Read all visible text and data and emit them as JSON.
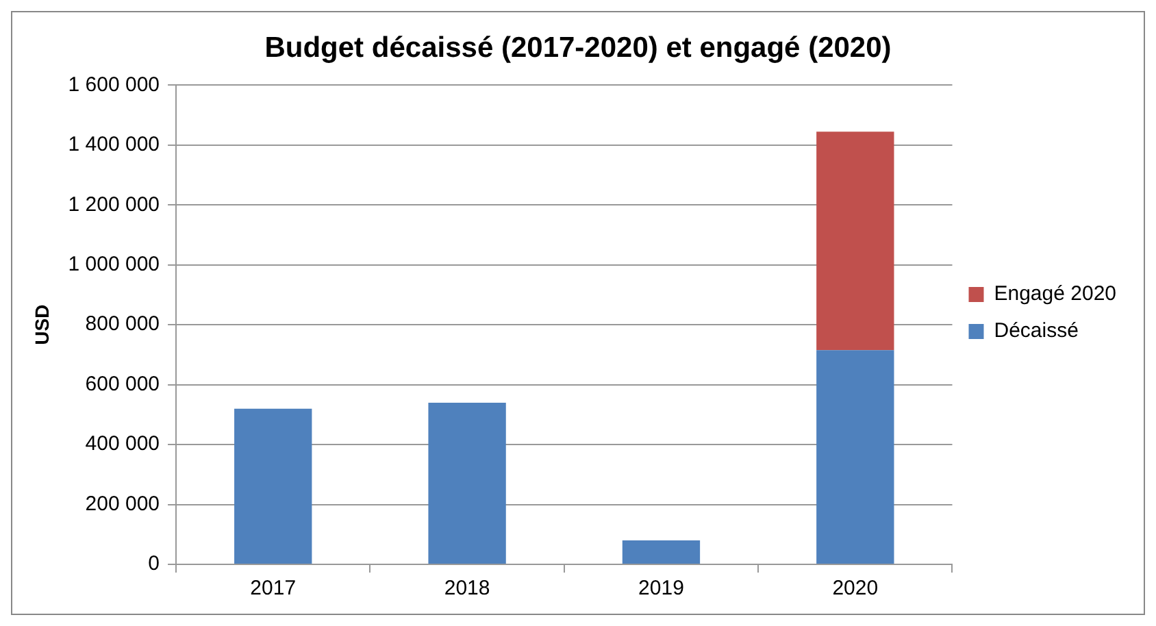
{
  "chart_data": {
    "type": "bar",
    "title": "Budget décaissé (2017-2020) et engagé (2020)",
    "ylabel": "USD",
    "categories": [
      "2017",
      "2018",
      "2019",
      "2020"
    ],
    "stacked": true,
    "series": [
      {
        "name": "Décaissé",
        "color": "#4f81bd",
        "values": [
          520000,
          540000,
          80000,
          715000
        ]
      },
      {
        "name": "Engagé 2020",
        "color": "#c0504d",
        "values": [
          null,
          null,
          null,
          730000
        ]
      }
    ],
    "ylim": [
      0,
      1600000
    ],
    "yticks": [
      {
        "value": 0,
        "label": "0"
      },
      {
        "value": 200000,
        "label": "200 000"
      },
      {
        "value": 400000,
        "label": "400 000"
      },
      {
        "value": 600000,
        "label": "600 000"
      },
      {
        "value": 800000,
        "label": "800 000"
      },
      {
        "value": 1000000,
        "label": "1 000 000"
      },
      {
        "value": 1200000,
        "label": "1 200 000"
      },
      {
        "value": 1400000,
        "label": "1 400 000"
      },
      {
        "value": 1600000,
        "label": "1 600 000"
      }
    ],
    "grid": "y",
    "legend": "right"
  }
}
